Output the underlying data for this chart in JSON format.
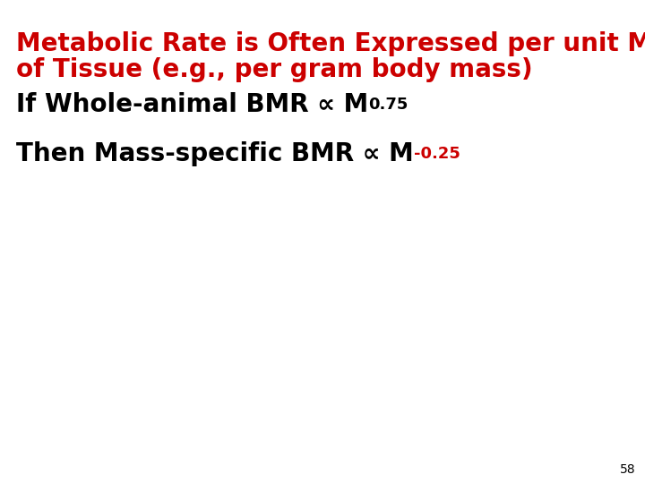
{
  "title_line1": "Metabolic Rate is Often Expressed per unit Mass",
  "title_line2": "of Tissue (e.g., per gram body mass)",
  "title_color": "#cc0000",
  "title_fontsize": 20,
  "line1_prefix": "If Whole-animal BMR ∝ M",
  "line1_superscript": "0.75",
  "line1_color": "#000000",
  "line1_super_color": "#000000",
  "line2_prefix": "Then Mass-specific BMR ∝ M",
  "line2_superscript": "-0.25",
  "line2_color": "#000000",
  "line2_super_color": "#cc0000",
  "body_fontsize": 20,
  "super_fontsize": 13,
  "page_number": "58",
  "background_color": "#ffffff"
}
